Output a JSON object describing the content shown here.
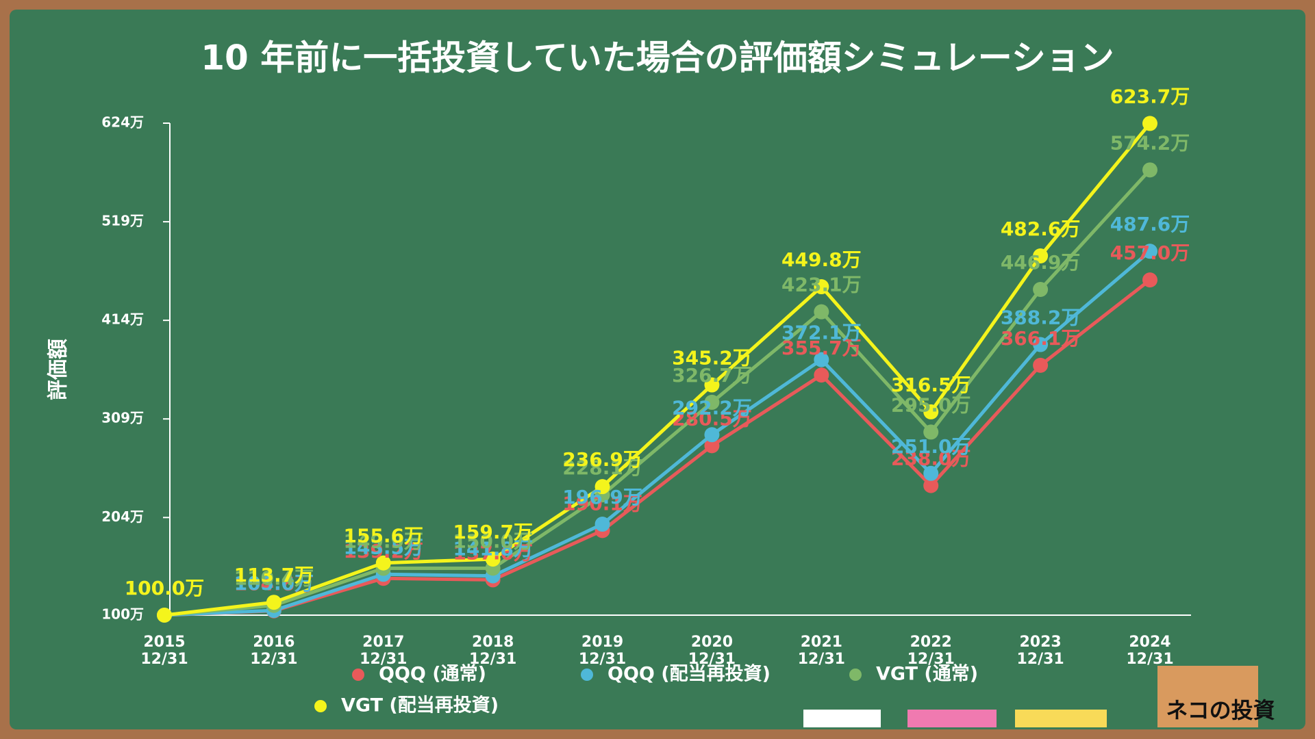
{
  "chart_data": {
    "type": "line",
    "title": "10 年前に一括投資していた場合の評価額シミュレーション",
    "y_label": "評価額",
    "categories": [
      "2015\n12/31",
      "2016\n12/31",
      "2017\n12/31",
      "2018\n12/31",
      "2019\n12/31",
      "2020\n12/31",
      "2021\n12/31",
      "2022\n12/31",
      "2023\n12/31",
      "2024\n12/31"
    ],
    "ylim": [
      100,
      624
    ],
    "yticks": [
      {
        "value": 100,
        "label": "100万"
      },
      {
        "value": 204,
        "label": "204万"
      },
      {
        "value": 309,
        "label": "309万"
      },
      {
        "value": 414,
        "label": "414万"
      },
      {
        "value": 519,
        "label": "519万"
      },
      {
        "value": 624,
        "label": "624万"
      }
    ],
    "series": [
      {
        "name": "QQQ (通常)",
        "color": "#e85a5a",
        "values": [
          100.0,
          104.6,
          139.2,
          137.6,
          190.1,
          280.5,
          355.7,
          238.0,
          366.1,
          457.0
        ],
        "value_labels": [
          "100.0万",
          "104.6万",
          "139.2万",
          "137.6万",
          "190.1万",
          "280.5万",
          "355.7万",
          "238.0万",
          "366.1万",
          "457.0万"
        ]
      },
      {
        "name": "QQQ (配当再投資)",
        "color": "#4fb8d8",
        "values": [
          100.0,
          105.0,
          143.5,
          141.8,
          196.9,
          292.2,
          372.1,
          251.0,
          388.2,
          487.6
        ],
        "value_labels": [
          "100.0万",
          "105.0万",
          "143.5万",
          "141.8万",
          "196.9万",
          "292.2万",
          "372.1万",
          "251.0万",
          "388.2万",
          "487.6万"
        ]
      },
      {
        "name": "VGT (通常)",
        "color": "#7fb868",
        "values": [
          100.0,
          110.4,
          149.9,
          150.0,
          228.1,
          326.7,
          423.1,
          295.0,
          446.9,
          574.2
        ],
        "value_labels": [
          "100.0万",
          "110.4万",
          "149.9万",
          "150.0万",
          "228.1万",
          "326.7万",
          "423.1万",
          "295.0万",
          "446.9万",
          "574.2万"
        ]
      },
      {
        "name": "VGT (配当再投資)",
        "color": "#f4f41c",
        "values": [
          100.0,
          113.7,
          155.6,
          159.7,
          236.9,
          345.2,
          449.8,
          316.5,
          482.6,
          623.7
        ],
        "value_labels": [
          "100.0万",
          "113.7万",
          "155.6万",
          "159.7万",
          "236.9万",
          "345.2万",
          "449.8万",
          "316.5万",
          "482.6万",
          "623.7万"
        ]
      }
    ]
  },
  "logo": "ネコの投資"
}
